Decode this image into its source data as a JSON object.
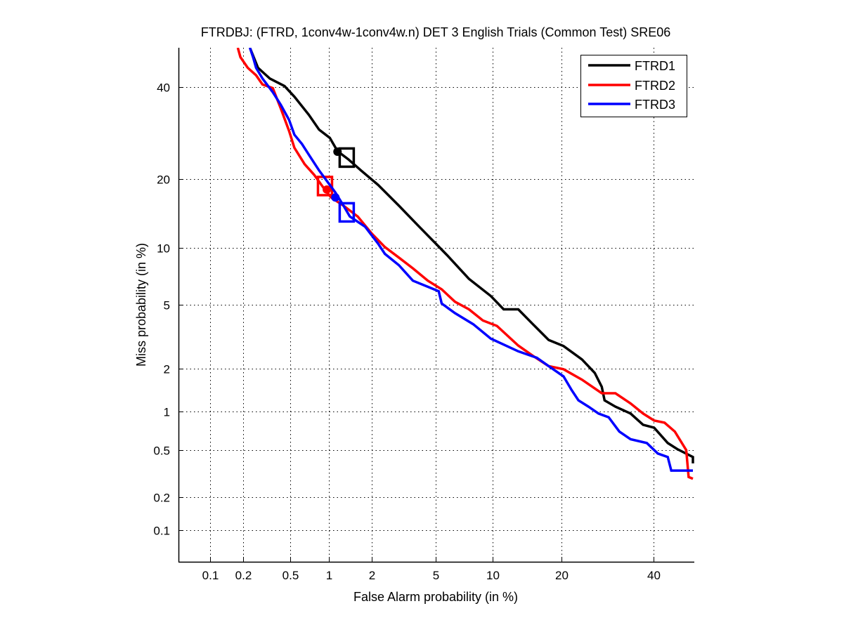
{
  "chart_data": {
    "type": "line",
    "title": "FTRDBJ: (FTRD, 1conv4w-1conv4w.n) DET 3 English Trials (Common Test) SRE06",
    "xlabel": "False Alarm probability (in %)",
    "ylabel": "Miss probability (in %)",
    "xscale": "probit",
    "yscale": "probit",
    "xlim": [
      0.05,
      50
    ],
    "ylim": [
      0.05,
      50
    ],
    "grid": true,
    "legend_position": "top-right",
    "xticks": [
      0.1,
      0.2,
      0.5,
      1,
      2,
      5,
      10,
      20,
      40
    ],
    "xtick_labels": [
      "0.1",
      "0.2",
      "0.5",
      "1",
      "2",
      "5",
      "10",
      "20",
      "40"
    ],
    "yticks": [
      0.1,
      0.2,
      0.5,
      1,
      2,
      5,
      10,
      20,
      40
    ],
    "ytick_labels": [
      "0.1",
      "0.2",
      "0.5",
      "1",
      "2",
      "5",
      "10",
      "20",
      "40"
    ],
    "series": [
      {
        "name": "FTRD1",
        "color": "#000000",
        "x": [
          0.23,
          0.27,
          0.34,
          0.45,
          0.54,
          0.7,
          0.84,
          1.01,
          1.15,
          1.37,
          1.69,
          2.2,
          3.0,
          4.0,
          5.0,
          5.8,
          7.6,
          9.8,
          11.3,
          13.2,
          15.3,
          17.8,
          20.4,
          23.9,
          26.5,
          28,
          28.6,
          31,
          34.5,
          37.5,
          40.2,
          43.6,
          46,
          50,
          50
        ],
        "y": [
          50,
          44.9,
          42.2,
          40.3,
          37.7,
          33.4,
          30.0,
          28.2,
          25.4,
          23.8,
          21.6,
          19.0,
          15.6,
          12.6,
          10.5,
          9.2,
          6.95,
          5.6,
          4.7,
          4.7,
          3.84,
          3.07,
          2.81,
          2.3,
          1.87,
          1.5,
          1.2,
          1.08,
          0.96,
          0.79,
          0.75,
          0.57,
          0.51,
          0.44,
          0.39
        ],
        "markers": {
          "circle": [
            1.15,
            25.3
          ],
          "square": [
            1.34,
            24.1
          ]
        }
      },
      {
        "name": "FTRD2",
        "color": "#ff0000",
        "x": [
          0.18,
          0.19,
          0.22,
          0.26,
          0.295,
          0.36,
          0.42,
          0.49,
          0.54,
          0.65,
          0.77,
          0.9,
          1.03,
          1.27,
          1.6,
          2.0,
          2.44,
          3.0,
          3.66,
          4.5,
          5.4,
          6.4,
          7.6,
          8.95,
          10.5,
          13.2,
          15.3,
          17.8,
          20.4,
          23.9,
          28,
          31,
          34.5,
          37.5,
          40.2,
          42.8,
          45.4,
          48.3,
          48.9,
          50
        ],
        "y": [
          50,
          47.6,
          44.9,
          43,
          40.7,
          39.8,
          34.8,
          29.7,
          26.1,
          22.8,
          20.8,
          18.6,
          16.9,
          15.6,
          14.0,
          11.7,
          10.1,
          8.96,
          7.9,
          6.8,
          6.1,
          5.2,
          4.7,
          4.04,
          3.75,
          2.83,
          2.43,
          2.08,
          1.98,
          1.68,
          1.35,
          1.35,
          1.14,
          0.96,
          0.85,
          0.82,
          0.7,
          0.5,
          0.3,
          0.29
        ],
        "markers": {
          "circle": [
            0.96,
            18.2
          ],
          "square": [
            0.93,
            18.8
          ]
        }
      },
      {
        "name": "FTRD3",
        "color": "#0000ff",
        "x": [
          0.23,
          0.245,
          0.26,
          0.295,
          0.36,
          0.42,
          0.49,
          0.54,
          0.62,
          0.7,
          0.84,
          1.01,
          1.11,
          1.27,
          1.41,
          1.8,
          2.2,
          2.44,
          3.0,
          3.66,
          4.5,
          5.2,
          5.4,
          6.4,
          8.0,
          9.8,
          13.2,
          15.9,
          17.8,
          20.4,
          21.9,
          23.2,
          25.2,
          27.3,
          29.5,
          31.9,
          34.5,
          38.4,
          41.1,
          43.6,
          44.5,
          50
        ],
        "y": [
          50,
          47.6,
          44.9,
          42.2,
          38.8,
          35.7,
          32.2,
          28.9,
          26.9,
          24.7,
          21.6,
          19.0,
          17.7,
          15.6,
          14.0,
          12.6,
          10.5,
          9.35,
          8.2,
          6.8,
          6.3,
          5.95,
          5.08,
          4.47,
          3.84,
          3.13,
          2.6,
          2.36,
          2.08,
          1.77,
          1.42,
          1.2,
          1.08,
          0.96,
          0.9,
          0.7,
          0.61,
          0.57,
          0.47,
          0.44,
          0.34,
          0.34
        ],
        "markers": {
          "circle": [
            1.11,
            16.9
          ],
          "square": [
            1.34,
            14.6
          ]
        }
      }
    ]
  }
}
